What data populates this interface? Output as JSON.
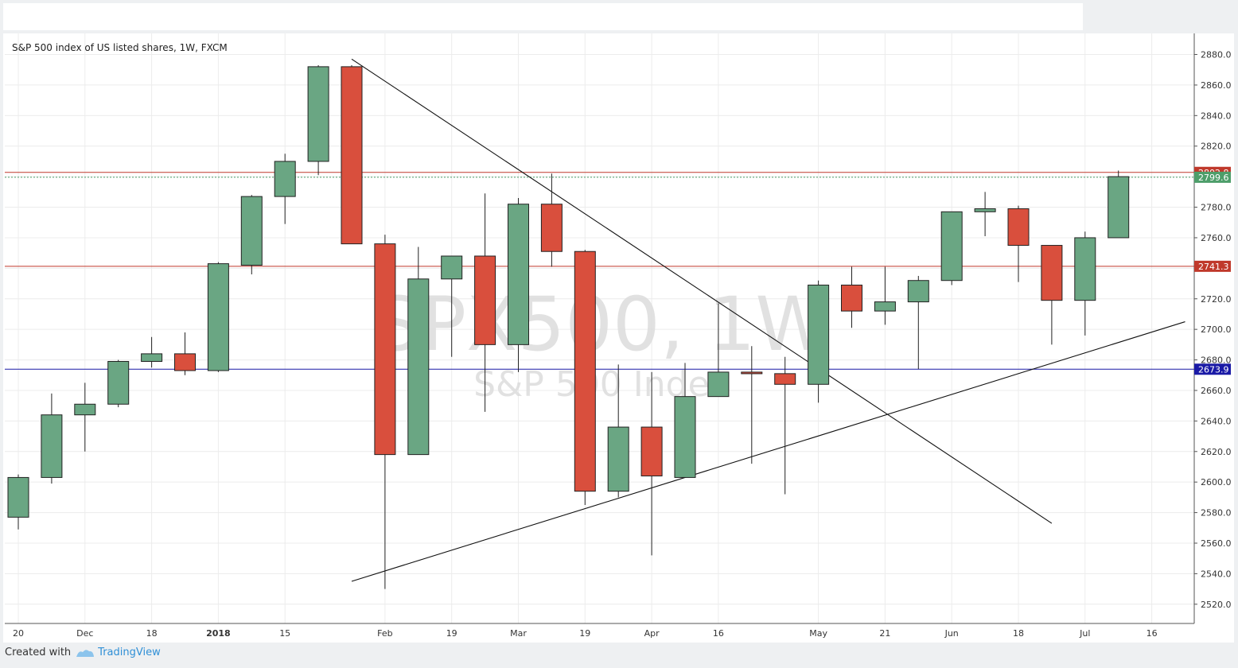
{
  "header": {
    "title": "S&P 500 index of US listed shares, 1W, FXCM"
  },
  "watermark": {
    "symbol": "SPX500, 1W",
    "name": "S&P 500 Index"
  },
  "footer": {
    "created_with": "Created with",
    "brand": "TradingView"
  },
  "colors": {
    "up": "#6aa683",
    "down": "#d94f3d",
    "resistance": "#c0392b",
    "support": "#1a1aa6",
    "last_price": "#4d9e6a"
  },
  "chart_data": {
    "type": "candlestick",
    "title": "S&P 500 index of US listed shares, 1W, FXCM",
    "ylim": [
      2510,
      2886
    ],
    "y_ticks": [
      2520,
      2540,
      2560,
      2580,
      2600,
      2620,
      2640,
      2660,
      2680,
      2700,
      2720,
      2740,
      2760,
      2780,
      2800,
      2820,
      2840,
      2860,
      2880
    ],
    "x_tick_labels": [
      {
        "label": "20",
        "index": 0,
        "bold": false
      },
      {
        "label": "Dec",
        "index": 2,
        "bold": false
      },
      {
        "label": "18",
        "index": 4,
        "bold": false
      },
      {
        "label": "2018",
        "index": 6,
        "bold": true
      },
      {
        "label": "15",
        "index": 8,
        "bold": false
      },
      {
        "label": "Feb",
        "index": 11,
        "bold": false
      },
      {
        "label": "19",
        "index": 13,
        "bold": false
      },
      {
        "label": "Mar",
        "index": 15,
        "bold": false
      },
      {
        "label": "19",
        "index": 17,
        "bold": false
      },
      {
        "label": "Apr",
        "index": 19,
        "bold": false
      },
      {
        "label": "16",
        "index": 21,
        "bold": false
      },
      {
        "label": "May",
        "index": 24,
        "bold": false
      },
      {
        "label": "21",
        "index": 26,
        "bold": false
      },
      {
        "label": "Jun",
        "index": 28,
        "bold": false
      },
      {
        "label": "18",
        "index": 30,
        "bold": false
      },
      {
        "label": "Jul",
        "index": 32,
        "bold": false
      },
      {
        "label": "16",
        "index": 34,
        "bold": false
      }
    ],
    "candles": [
      {
        "o": 2577,
        "h": 2605,
        "l": 2569,
        "c": 2603
      },
      {
        "o": 2603,
        "h": 2658,
        "l": 2599,
        "c": 2644
      },
      {
        "o": 2644,
        "h": 2665,
        "l": 2620,
        "c": 2651
      },
      {
        "o": 2651,
        "h": 2680,
        "l": 2649,
        "c": 2679
      },
      {
        "o": 2679,
        "h": 2695,
        "l": 2675,
        "c": 2684
      },
      {
        "o": 2684,
        "h": 2698,
        "l": 2670,
        "c": 2673
      },
      {
        "o": 2673,
        "h": 2744,
        "l": 2672,
        "c": 2743
      },
      {
        "o": 2742,
        "h": 2788,
        "l": 2736,
        "c": 2787
      },
      {
        "o": 2787,
        "h": 2815,
        "l": 2769,
        "c": 2810
      },
      {
        "o": 2810,
        "h": 2873,
        "l": 2801,
        "c": 2872
      },
      {
        "o": 2872,
        "h": 2873,
        "l": 2756,
        "c": 2756
      },
      {
        "o": 2756,
        "h": 2762,
        "l": 2530,
        "c": 2618
      },
      {
        "o": 2618,
        "h": 2754,
        "l": 2618,
        "c": 2733
      },
      {
        "o": 2733,
        "h": 2748,
        "l": 2682,
        "c": 2748
      },
      {
        "o": 2748,
        "h": 2789,
        "l": 2646,
        "c": 2690
      },
      {
        "o": 2690,
        "h": 2786,
        "l": 2672,
        "c": 2782
      },
      {
        "o": 2782,
        "h": 2802,
        "l": 2741,
        "c": 2751
      },
      {
        "o": 2751,
        "h": 2752,
        "l": 2585,
        "c": 2594
      },
      {
        "o": 2594,
        "h": 2677,
        "l": 2590,
        "c": 2636
      },
      {
        "o": 2636,
        "h": 2672,
        "l": 2552,
        "c": 2604
      },
      {
        "o": 2603,
        "h": 2678,
        "l": 2603,
        "c": 2656
      },
      {
        "o": 2656,
        "h": 2717,
        "l": 2656,
        "c": 2672
      },
      {
        "o": 2672,
        "h": 2689,
        "l": 2612,
        "c": 2671
      },
      {
        "o": 2671,
        "h": 2682,
        "l": 2592,
        "c": 2664
      },
      {
        "o": 2664,
        "h": 2732,
        "l": 2652,
        "c": 2729
      },
      {
        "o": 2729,
        "h": 2741,
        "l": 2701,
        "c": 2712
      },
      {
        "o": 2712,
        "h": 2741,
        "l": 2703,
        "c": 2718
      },
      {
        "o": 2718,
        "h": 2735,
        "l": 2674,
        "c": 2732
      },
      {
        "o": 2732,
        "h": 2777,
        "l": 2729,
        "c": 2777
      },
      {
        "o": 2777,
        "h": 2790,
        "l": 2761,
        "c": 2779
      },
      {
        "o": 2779,
        "h": 2781,
        "l": 2731,
        "c": 2755
      },
      {
        "o": 2755,
        "h": 2755,
        "l": 2690,
        "c": 2719
      },
      {
        "o": 2719,
        "h": 2764,
        "l": 2696,
        "c": 2760
      },
      {
        "o": 2760,
        "h": 2804,
        "l": 2760,
        "c": 2800
      }
    ],
    "horizontal_levels": [
      {
        "value": 2802.8,
        "label": "2802.8",
        "color": "#c0392b",
        "style": "solid"
      },
      {
        "value": 2741.3,
        "label": "2741.3",
        "color": "#c0392b",
        "style": "solid"
      },
      {
        "value": 2673.9,
        "label": "2673.9",
        "color": "#1a1aa6",
        "style": "solid"
      },
      {
        "value": 2799.6,
        "label": "2799.6",
        "color": "#4d9e6a",
        "style": "dotted"
      }
    ],
    "trendlines": [
      {
        "from": {
          "index": 10,
          "value": 2877
        },
        "to": {
          "index": 31,
          "value": 2573
        }
      },
      {
        "from": {
          "index": 10,
          "value": 2535
        },
        "to": {
          "index": 35,
          "value": 2705
        }
      }
    ]
  }
}
